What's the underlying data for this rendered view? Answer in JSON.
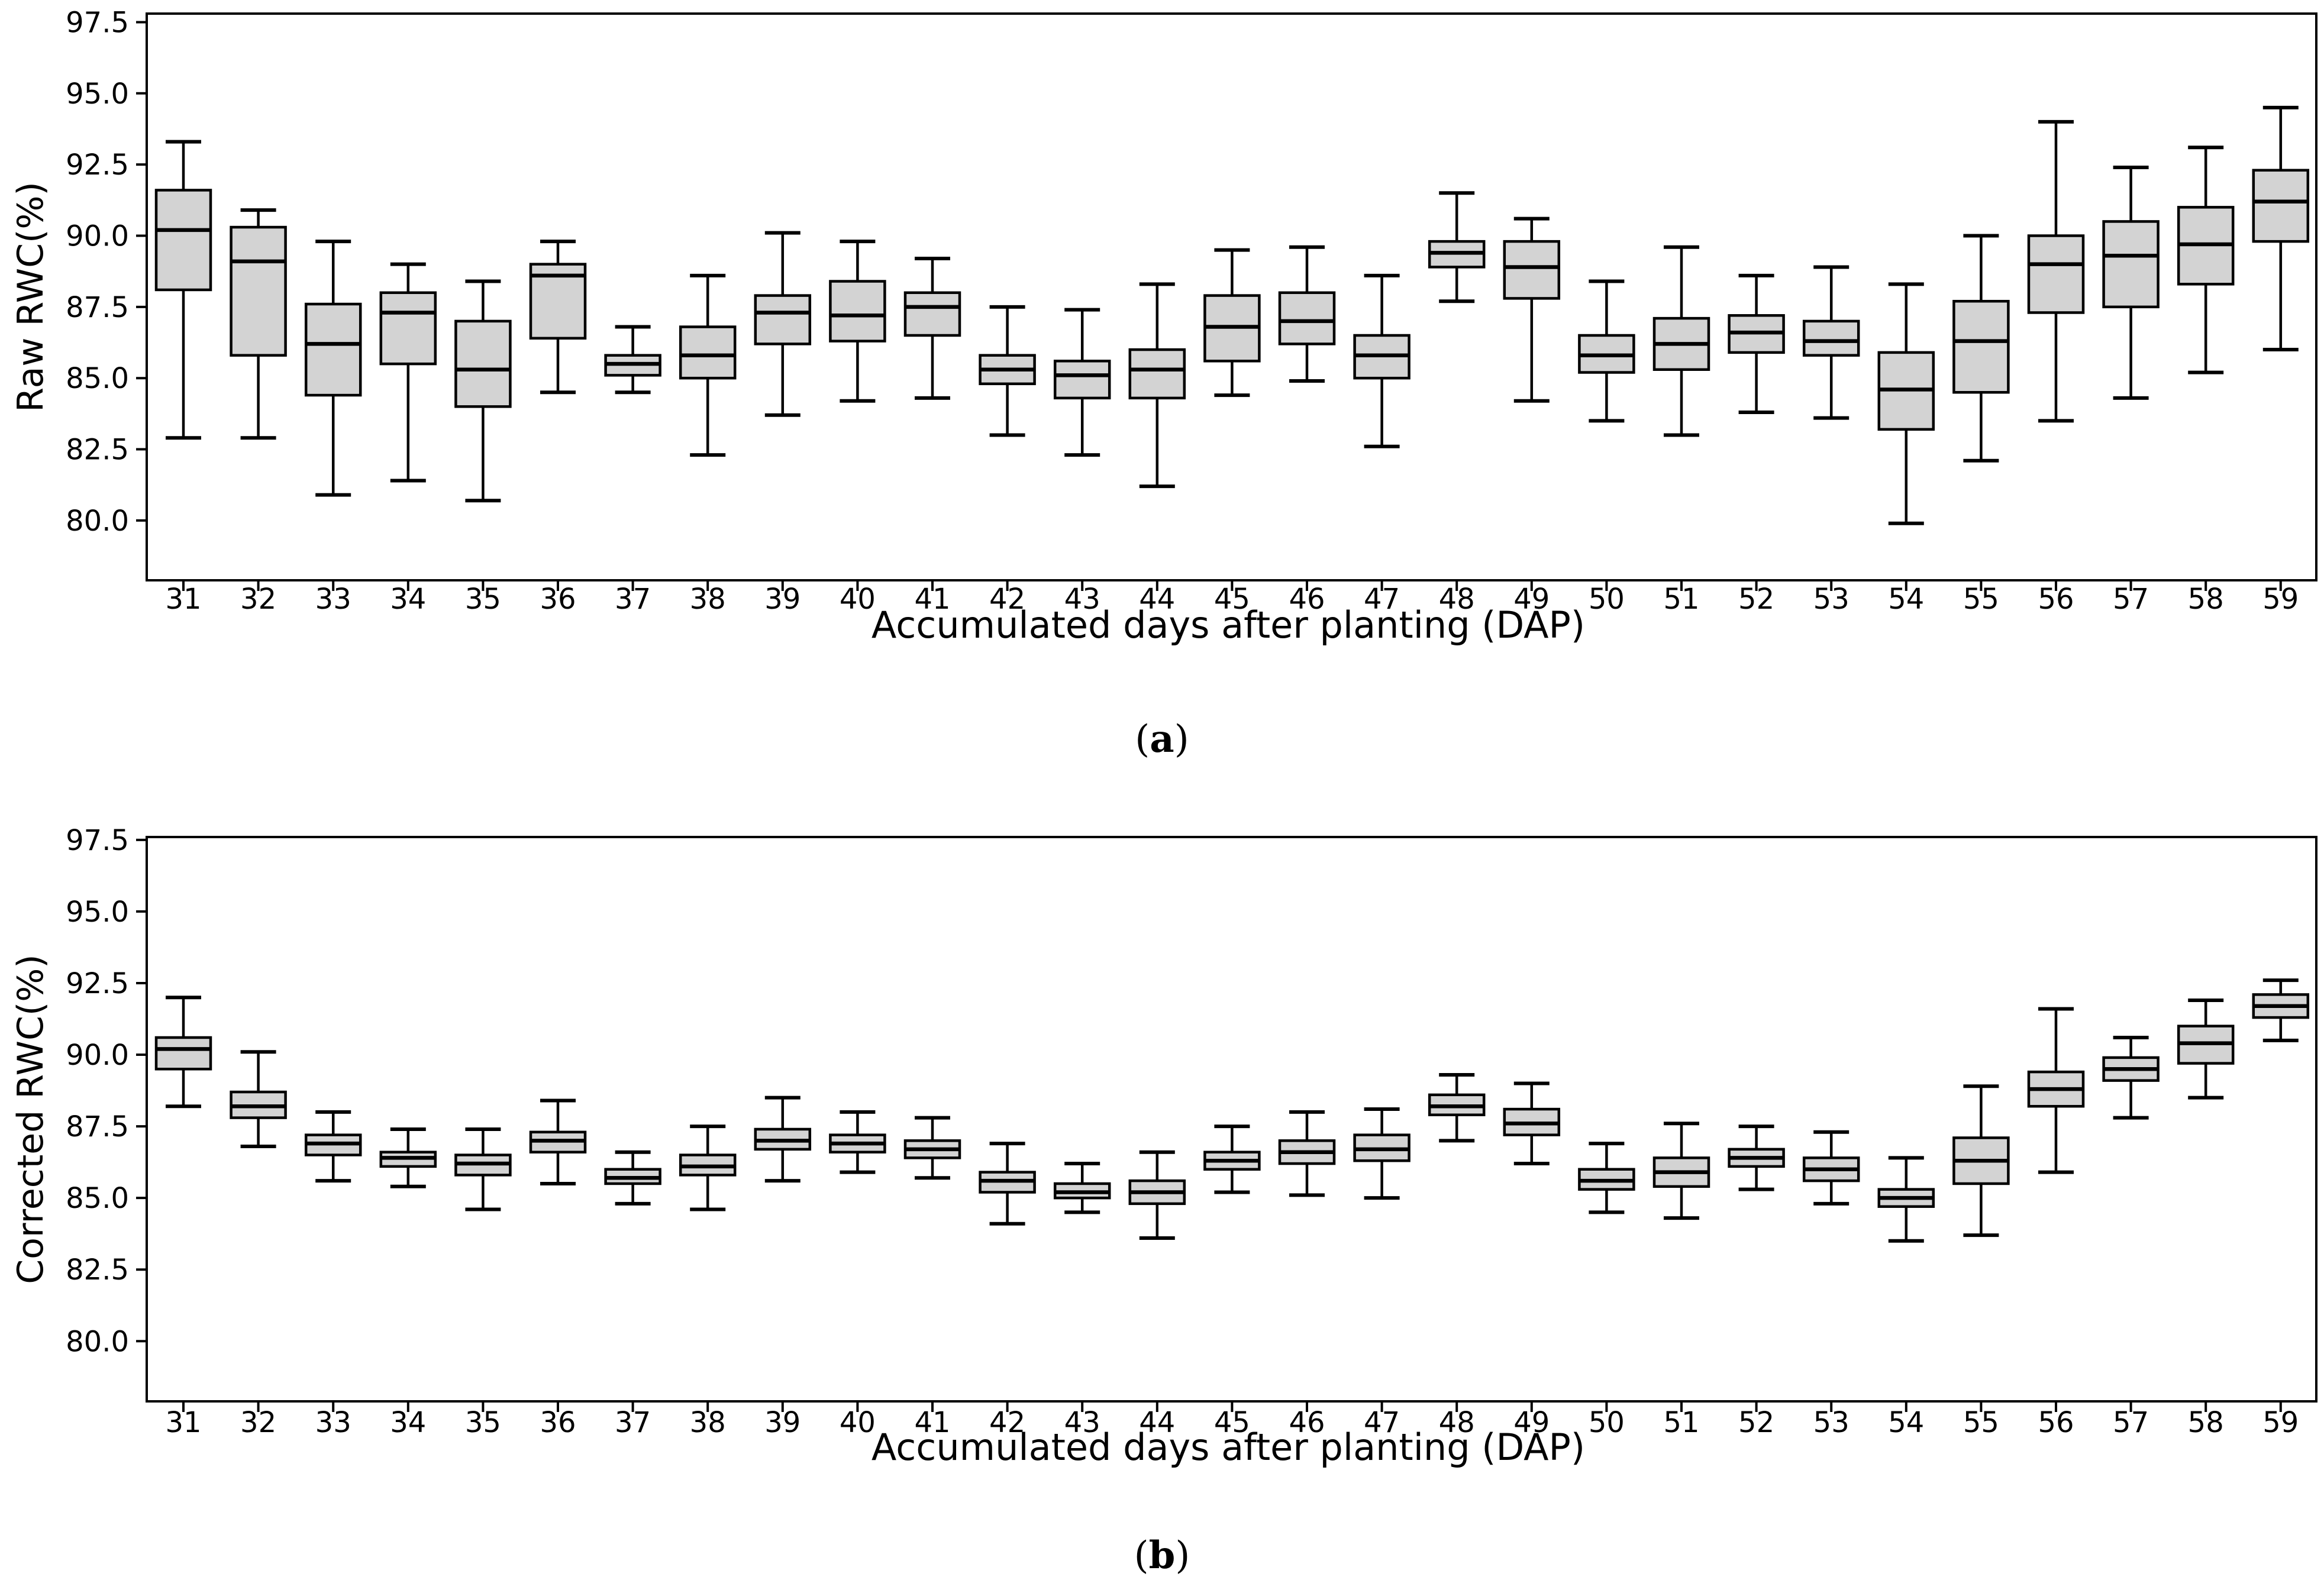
{
  "figure": {
    "background": "#ffffff",
    "box_fill": "#d3d3d3",
    "line_color": "#000000",
    "caption_a": {
      "pre": "(",
      "label": "a",
      "post": ")"
    },
    "caption_b": {
      "pre": "(",
      "label": "b",
      "post": ")"
    }
  },
  "chart_data": [
    {
      "type": "boxplot",
      "panel": "a",
      "title": "",
      "xlabel": "Accumulated days after planting (DAP)",
      "ylabel": "Raw RWC(%)",
      "legend": "none",
      "grid": false,
      "ylim": [
        77.9,
        97.8
      ],
      "yticks": [
        80.0,
        82.5,
        85.0,
        87.5,
        90.0,
        92.5,
        95.0,
        97.5
      ],
      "categories": [
        31,
        32,
        33,
        34,
        35,
        36,
        37,
        38,
        39,
        40,
        41,
        42,
        43,
        44,
        45,
        46,
        47,
        48,
        49,
        50,
        51,
        52,
        53,
        54,
        55,
        56,
        57,
        58,
        59
      ],
      "series_note": "values are [whisker_low, q1, median, q3, whisker_high] in %RWC",
      "boxes": [
        [
          82.9,
          88.1,
          90.2,
          91.6,
          93.3
        ],
        [
          82.9,
          85.8,
          89.1,
          90.3,
          90.9
        ],
        [
          80.9,
          84.4,
          86.2,
          87.6,
          89.8
        ],
        [
          81.4,
          85.5,
          87.3,
          88.0,
          89.0
        ],
        [
          80.7,
          84.0,
          85.3,
          87.0,
          88.4
        ],
        [
          84.5,
          86.4,
          88.6,
          89.0,
          89.8
        ],
        [
          84.5,
          85.1,
          85.5,
          85.8,
          86.8
        ],
        [
          82.3,
          85.0,
          85.8,
          86.8,
          88.6
        ],
        [
          83.7,
          86.2,
          87.3,
          87.9,
          90.1
        ],
        [
          84.2,
          86.3,
          87.2,
          88.4,
          89.8
        ],
        [
          84.3,
          86.5,
          87.5,
          88.0,
          89.2
        ],
        [
          83.0,
          84.8,
          85.3,
          85.8,
          87.5
        ],
        [
          82.3,
          84.3,
          85.1,
          85.6,
          87.4
        ],
        [
          81.2,
          84.3,
          85.3,
          86.0,
          88.3
        ],
        [
          84.4,
          85.6,
          86.8,
          87.9,
          89.5
        ],
        [
          84.9,
          86.2,
          87.0,
          88.0,
          89.6
        ],
        [
          82.6,
          85.0,
          85.8,
          86.5,
          88.6
        ],
        [
          87.7,
          88.9,
          89.4,
          89.8,
          91.5
        ],
        [
          84.2,
          87.8,
          88.9,
          89.8,
          90.6
        ],
        [
          83.5,
          85.2,
          85.8,
          86.5,
          88.4
        ],
        [
          83.0,
          85.3,
          86.2,
          87.1,
          89.6
        ],
        [
          83.8,
          85.9,
          86.6,
          87.2,
          88.6
        ],
        [
          83.6,
          85.8,
          86.3,
          87.0,
          88.9
        ],
        [
          79.9,
          83.2,
          84.6,
          85.9,
          88.3
        ],
        [
          82.1,
          84.5,
          86.3,
          87.7,
          90.0
        ],
        [
          83.5,
          87.3,
          89.0,
          90.0,
          94.0
        ],
        [
          84.3,
          87.5,
          89.3,
          90.5,
          92.4
        ],
        [
          85.2,
          88.3,
          89.7,
          91.0,
          93.1
        ],
        [
          86.0,
          89.8,
          91.2,
          92.3,
          94.5
        ]
      ]
    },
    {
      "type": "boxplot",
      "panel": "b",
      "title": "",
      "xlabel": "Accumulated days after planting (DAP)",
      "ylabel": "Corrected RWC(%)",
      "legend": "none",
      "grid": false,
      "ylim": [
        77.9,
        97.6
      ],
      "yticks": [
        80.0,
        82.5,
        85.0,
        87.5,
        90.0,
        92.5,
        95.0,
        97.5
      ],
      "categories": [
        31,
        32,
        33,
        34,
        35,
        36,
        37,
        38,
        39,
        40,
        41,
        42,
        43,
        44,
        45,
        46,
        47,
        48,
        49,
        50,
        51,
        52,
        53,
        54,
        55,
        56,
        57,
        58,
        59
      ],
      "series_note": "values are [whisker_low, q1, median, q3, whisker_high] in %RWC",
      "boxes": [
        [
          88.2,
          89.5,
          90.2,
          90.6,
          92.0
        ],
        [
          86.8,
          87.8,
          88.2,
          88.7,
          90.1
        ],
        [
          85.6,
          86.5,
          86.9,
          87.2,
          88.0
        ],
        [
          85.4,
          86.1,
          86.4,
          86.6,
          87.4
        ],
        [
          84.6,
          85.8,
          86.2,
          86.5,
          87.4
        ],
        [
          85.5,
          86.6,
          87.0,
          87.3,
          88.4
        ],
        [
          84.8,
          85.5,
          85.7,
          86.0,
          86.6
        ],
        [
          84.6,
          85.8,
          86.1,
          86.5,
          87.5
        ],
        [
          85.6,
          86.7,
          87.0,
          87.4,
          88.5
        ],
        [
          85.9,
          86.6,
          86.9,
          87.2,
          88.0
        ],
        [
          85.7,
          86.4,
          86.7,
          87.0,
          87.8
        ],
        [
          84.1,
          85.2,
          85.6,
          85.9,
          86.9
        ],
        [
          84.5,
          85.0,
          85.2,
          85.5,
          86.2
        ],
        [
          83.6,
          84.8,
          85.2,
          85.6,
          86.6
        ],
        [
          85.2,
          86.0,
          86.3,
          86.6,
          87.5
        ],
        [
          85.1,
          86.2,
          86.6,
          87.0,
          88.0
        ],
        [
          85.0,
          86.3,
          86.7,
          87.2,
          88.1
        ],
        [
          87.0,
          87.9,
          88.2,
          88.6,
          89.3
        ],
        [
          86.2,
          87.2,
          87.6,
          88.1,
          89.0
        ],
        [
          84.5,
          85.3,
          85.6,
          86.0,
          86.9
        ],
        [
          84.3,
          85.4,
          85.9,
          86.4,
          87.6
        ],
        [
          85.3,
          86.1,
          86.4,
          86.7,
          87.5
        ],
        [
          84.8,
          85.6,
          86.0,
          86.4,
          87.3
        ],
        [
          83.5,
          84.7,
          85.0,
          85.3,
          86.4
        ],
        [
          83.7,
          85.5,
          86.3,
          87.1,
          88.9
        ],
        [
          85.9,
          88.2,
          88.8,
          89.4,
          91.6
        ],
        [
          87.8,
          89.1,
          89.5,
          89.9,
          90.6
        ],
        [
          88.5,
          89.7,
          90.4,
          91.0,
          91.9
        ],
        [
          90.5,
          91.3,
          91.7,
          92.1,
          92.6
        ]
      ]
    }
  ]
}
